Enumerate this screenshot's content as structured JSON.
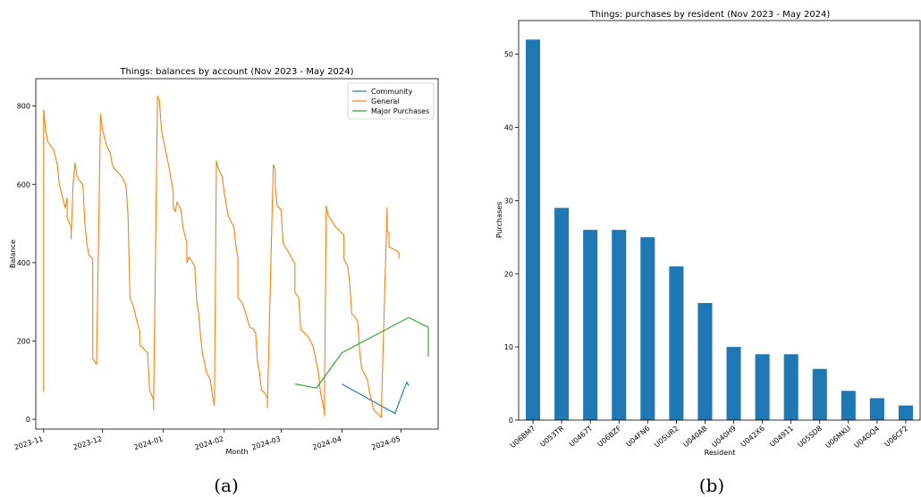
{
  "chart_data": [
    {
      "type": "line",
      "title": "Things: balances by account (Nov 2023 - May 2024)",
      "xlabel": "Month",
      "ylabel": "Balance",
      "xticks": [
        "2023-11",
        "2023-12",
        "2024-01",
        "2024-02",
        "2024-03",
        "2024-04",
        "2024-05"
      ],
      "yticks": [
        0,
        200,
        400,
        600,
        800
      ],
      "xlim": [
        "2023-10-28",
        "2024-05-20"
      ],
      "ylim": [
        -25,
        870
      ],
      "legend_position": "top-right",
      "series": [
        {
          "name": "Community",
          "color": "#1f77b4",
          "points": [
            [
              "2024-04-01",
              90
            ],
            [
              "2024-04-28",
              15
            ],
            [
              "2024-05-04",
              95
            ],
            [
              "2024-05-05",
              85
            ]
          ]
        },
        {
          "name": "General",
          "color": "#ff7f0e",
          "points": [
            [
              "2023-11-01",
              70
            ],
            [
              "2023-11-01",
              790
            ],
            [
              "2023-11-02",
              740
            ],
            [
              "2023-11-03",
              710
            ],
            [
              "2023-11-05",
              695
            ],
            [
              "2023-11-06",
              690
            ],
            [
              "2023-11-07",
              670
            ],
            [
              "2023-11-08",
              650
            ],
            [
              "2023-11-09",
              600
            ],
            [
              "2023-11-10",
              580
            ],
            [
              "2023-11-12",
              540
            ],
            [
              "2023-11-13",
              565
            ],
            [
              "2023-11-13",
              515
            ],
            [
              "2023-11-15",
              490
            ],
            [
              "2023-11-15",
              460
            ],
            [
              "2023-11-16",
              600
            ],
            [
              "2023-11-17",
              655
            ],
            [
              "2023-11-18",
              620
            ],
            [
              "2023-11-20",
              605
            ],
            [
              "2023-11-21",
              600
            ],
            [
              "2023-11-22",
              500
            ],
            [
              "2023-11-23",
              450
            ],
            [
              "2023-11-24",
              420
            ],
            [
              "2023-11-26",
              410
            ],
            [
              "2023-11-26",
              155
            ],
            [
              "2023-11-28",
              140
            ],
            [
              "2023-11-30",
              780
            ],
            [
              "2023-12-01",
              740
            ],
            [
              "2023-12-02",
              720
            ],
            [
              "2023-12-03",
              700
            ],
            [
              "2023-12-05",
              680
            ],
            [
              "2023-12-06",
              650
            ],
            [
              "2023-12-07",
              640
            ],
            [
              "2023-12-10",
              625
            ],
            [
              "2023-12-12",
              610
            ],
            [
              "2023-12-13",
              595
            ],
            [
              "2023-12-14",
              520
            ],
            [
              "2023-12-15",
              310
            ],
            [
              "2023-12-17",
              285
            ],
            [
              "2023-12-18",
              260
            ],
            [
              "2023-12-20",
              225
            ],
            [
              "2023-12-20",
              190
            ],
            [
              "2023-12-23",
              175
            ],
            [
              "2023-12-24",
              170
            ],
            [
              "2023-12-25",
              75
            ],
            [
              "2023-12-27",
              50
            ],
            [
              "2023-12-27",
              25
            ],
            [
              "2023-12-29",
              825
            ],
            [
              "2023-12-30",
              815
            ],
            [
              "2023-12-31",
              740
            ],
            [
              "2024-01-02",
              690
            ],
            [
              "2024-01-04",
              640
            ],
            [
              "2024-01-06",
              580
            ],
            [
              "2024-01-06",
              540
            ],
            [
              "2024-01-07",
              530
            ],
            [
              "2024-01-08",
              555
            ],
            [
              "2024-01-10",
              535
            ],
            [
              "2024-01-11",
              490
            ],
            [
              "2024-01-13",
              450
            ],
            [
              "2024-01-13",
              400
            ],
            [
              "2024-01-14",
              415
            ],
            [
              "2024-01-16",
              400
            ],
            [
              "2024-01-17",
              390
            ],
            [
              "2024-01-18",
              300
            ],
            [
              "2024-01-19",
              270
            ],
            [
              "2024-01-20",
              210
            ],
            [
              "2024-01-21",
              165
            ],
            [
              "2024-01-22",
              145
            ],
            [
              "2024-01-23",
              120
            ],
            [
              "2024-01-24",
              110
            ],
            [
              "2024-01-25",
              100
            ],
            [
              "2024-01-26",
              60
            ],
            [
              "2024-01-27",
              35
            ],
            [
              "2024-01-28",
              660
            ],
            [
              "2024-01-29",
              640
            ],
            [
              "2024-01-31",
              620
            ],
            [
              "2024-02-01",
              580
            ],
            [
              "2024-02-03",
              520
            ],
            [
              "2024-02-05",
              500
            ],
            [
              "2024-02-06",
              490
            ],
            [
              "2024-02-07",
              440
            ],
            [
              "2024-02-08",
              410
            ],
            [
              "2024-02-08",
              310
            ],
            [
              "2024-02-10",
              300
            ],
            [
              "2024-02-12",
              270
            ],
            [
              "2024-02-14",
              235
            ],
            [
              "2024-02-16",
              230
            ],
            [
              "2024-02-17",
              220
            ],
            [
              "2024-02-18",
              145
            ],
            [
              "2024-02-19",
              120
            ],
            [
              "2024-02-20",
              75
            ],
            [
              "2024-02-22",
              65
            ],
            [
              "2024-02-23",
              55
            ],
            [
              "2024-02-23",
              30
            ],
            [
              "2024-02-26",
              650
            ],
            [
              "2024-02-27",
              640
            ],
            [
              "2024-02-27",
              590
            ],
            [
              "2024-02-28",
              545
            ],
            [
              "2024-03-01",
              535
            ],
            [
              "2024-03-02",
              450
            ],
            [
              "2024-03-05",
              425
            ],
            [
              "2024-03-07",
              405
            ],
            [
              "2024-03-08",
              400
            ],
            [
              "2024-03-08",
              325
            ],
            [
              "2024-03-10",
              310
            ],
            [
              "2024-03-11",
              230
            ],
            [
              "2024-03-13",
              220
            ],
            [
              "2024-03-15",
              210
            ],
            [
              "2024-03-17",
              190
            ],
            [
              "2024-03-18",
              170
            ],
            [
              "2024-03-19",
              145
            ],
            [
              "2024-03-20",
              120
            ],
            [
              "2024-03-21",
              70
            ],
            [
              "2024-03-23",
              20
            ],
            [
              "2024-03-23",
              10
            ],
            [
              "2024-03-24",
              545
            ],
            [
              "2024-03-25",
              520
            ],
            [
              "2024-03-27",
              505
            ],
            [
              "2024-03-29",
              490
            ],
            [
              "2024-03-31",
              480
            ],
            [
              "2024-04-02",
              470
            ],
            [
              "2024-04-02",
              410
            ],
            [
              "2024-04-04",
              390
            ],
            [
              "2024-04-05",
              345
            ],
            [
              "2024-04-06",
              270
            ],
            [
              "2024-04-07",
              265
            ],
            [
              "2024-04-09",
              250
            ],
            [
              "2024-04-10",
              175
            ],
            [
              "2024-04-11",
              130
            ],
            [
              "2024-04-12",
              120
            ],
            [
              "2024-04-14",
              100
            ],
            [
              "2024-04-15",
              70
            ],
            [
              "2024-04-16",
              50
            ],
            [
              "2024-04-17",
              25
            ],
            [
              "2024-04-18",
              20
            ],
            [
              "2024-04-20",
              10
            ],
            [
              "2024-04-21",
              5
            ],
            [
              "2024-04-24",
              540
            ],
            [
              "2024-04-24",
              480
            ],
            [
              "2024-04-25",
              475
            ],
            [
              "2024-04-25",
              440
            ],
            [
              "2024-04-29",
              430
            ],
            [
              "2024-04-30",
              425
            ],
            [
              "2024-04-30",
              410
            ]
          ]
        },
        {
          "name": "Major Purchases",
          "color": "#2ca02c",
          "points": [
            [
              "2024-03-08",
              90
            ],
            [
              "2024-03-19",
              80
            ],
            [
              "2024-04-01",
              170
            ],
            [
              "2024-05-05",
              260
            ],
            [
              "2024-05-15",
              235
            ],
            [
              "2024-05-15",
              160
            ]
          ]
        }
      ]
    },
    {
      "type": "bar",
      "title": "Things: purchases by resident (Nov 2023 - May 2024)",
      "xlabel": "Resident",
      "ylabel": "Purchases",
      "categories": [
        "U06BM7",
        "U053TR",
        "U0467T",
        "U06BZF",
        "U04FN6",
        "U05UR2",
        "U040AB",
        "U040H9",
        "U042X6",
        "U04911",
        "U05SD8",
        "U06MKU",
        "U04GQ4",
        "U06CF2"
      ],
      "values": [
        52,
        29,
        26,
        26,
        25,
        21,
        16,
        10,
        9,
        9,
        7,
        4,
        3,
        2
      ],
      "yticks": [
        0,
        10,
        20,
        30,
        40,
        50
      ],
      "ylim": [
        0,
        54.6
      ],
      "color": "#1f77b4"
    }
  ],
  "captions": [
    "(a)",
    "(b)"
  ]
}
